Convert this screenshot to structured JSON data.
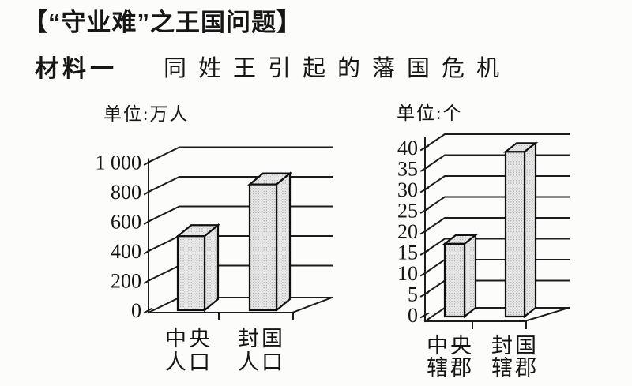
{
  "header": {
    "title": "【“守业难”之王国问题】",
    "material_label": "材料一",
    "material_title": "同姓王引起的藩国危机"
  },
  "chart_data": [
    {
      "type": "bar",
      "style": "3d-bar",
      "unit_label": "单位:万人",
      "categories": [
        "中央人口",
        "封国人口"
      ],
      "category_label_lines": [
        [
          "中央",
          "人口"
        ],
        [
          "封国",
          "人口"
        ]
      ],
      "values": [
        500,
        850
      ],
      "ylim": [
        0,
        1000
      ],
      "yticks": [
        0,
        200,
        400,
        600,
        800,
        1000
      ],
      "ytick_labels": [
        "0",
        "200",
        "400",
        "600",
        "800",
        "1 000"
      ],
      "grid": true,
      "legend": false
    },
    {
      "type": "bar",
      "style": "3d-bar",
      "unit_label": "单位:个",
      "categories": [
        "中央辖郡",
        "封国辖郡"
      ],
      "category_label_lines": [
        [
          "中央",
          "辖郡"
        ],
        [
          "封国",
          "辖郡"
        ]
      ],
      "values": [
        17,
        39
      ],
      "ylim": [
        0,
        40
      ],
      "yticks": [
        0,
        5,
        10,
        15,
        20,
        25,
        30,
        35,
        40
      ],
      "ytick_labels": [
        "0",
        "5",
        "10",
        "15",
        "20",
        "25",
        "30",
        "35",
        "40"
      ],
      "grid": true,
      "legend": false
    }
  ],
  "colors": {
    "ink": "#1c1c1c",
    "bar_fill": "#ebebeb",
    "bar_dot": "#9a9a9a",
    "paper": "#fcfcfa"
  }
}
